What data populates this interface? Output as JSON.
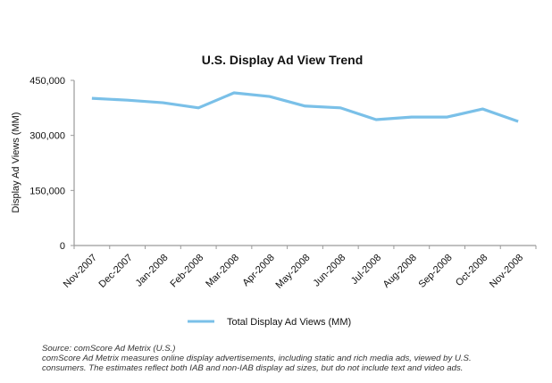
{
  "chart_data": {
    "type": "line",
    "title": "U.S. Display Ad View Trend",
    "xlabel": "",
    "ylabel": "Display Ad Views (MM)",
    "categories": [
      "Nov-2007",
      "Dec-2007",
      "Jan-2008",
      "Feb-2008",
      "Mar-2008",
      "Apr-2008",
      "May-2008",
      "Jun-2008",
      "Jul-2008",
      "Aug-2008",
      "Sep-2008",
      "Oct-2008",
      "Nov-2008"
    ],
    "series": [
      {
        "name": "Total Display Ad Views (MM)",
        "color": "#7ac0e8",
        "values": [
          401000,
          396000,
          389000,
          375000,
          416000,
          406000,
          380000,
          375000,
          343000,
          350000,
          350000,
          372000,
          338000
        ]
      }
    ],
    "ylim": [
      0,
      450000
    ],
    "yticks": [
      0,
      150000,
      300000,
      450000
    ],
    "ytick_labels": [
      "0",
      "150,000",
      "300,000",
      "450,000"
    ],
    "grid": false,
    "legend_position": "bottom"
  },
  "footnote": {
    "source": "Source: comScore Ad Metrix (U.S.)",
    "line1": "comScore Ad Metrix measures online display advertisements, including static and rich media ads, viewed by U.S.",
    "line2": "consumers.  The estimates reflect both IAB and non-IAB display ad sizes, but do not include text and video ads."
  }
}
